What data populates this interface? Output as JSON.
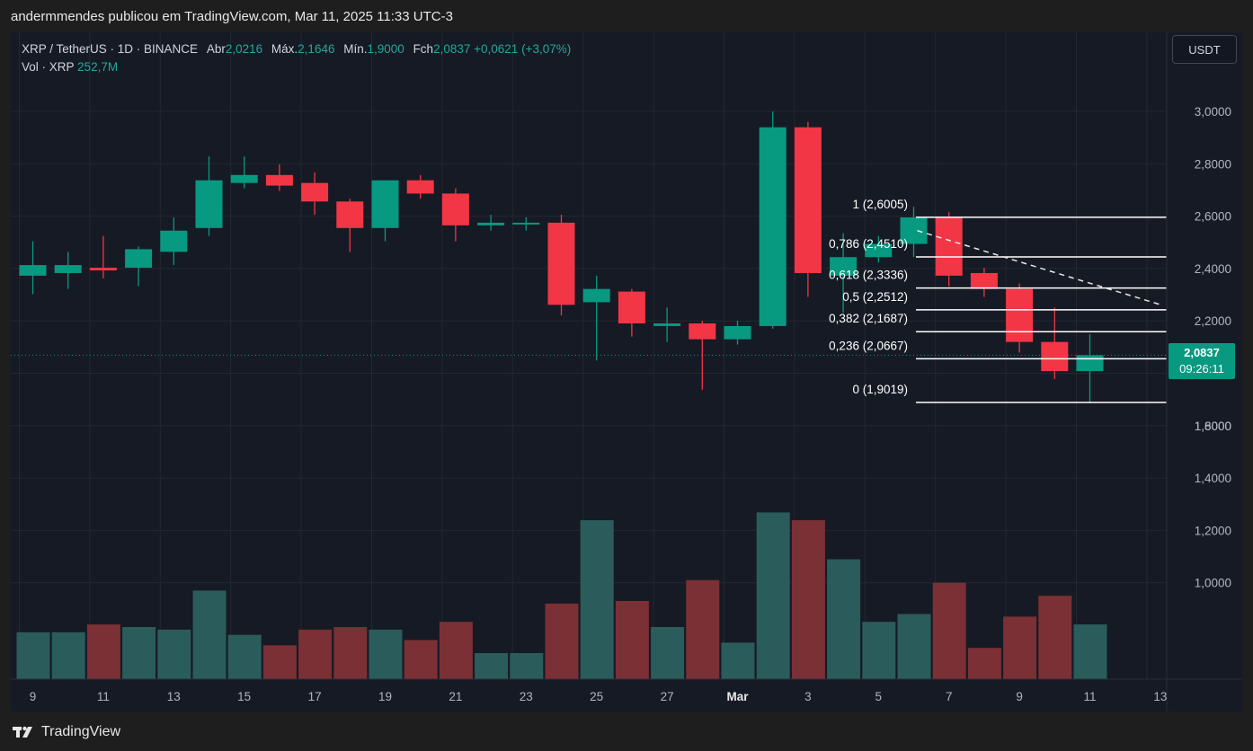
{
  "header": {
    "publisher": "andermmendes publicou em TradingView.com, Mar 11, 2025 11:33 UTC-3"
  },
  "legend": {
    "symbol": "XRP / TetherUS · 1D · BINANCE",
    "open_label": "Abr",
    "open": "2,0216",
    "high_label": "Máx.",
    "high": "2,1646",
    "low_label": "Mín.",
    "low": "1,9000",
    "close_label": "Fch",
    "close": "2,0837",
    "change": "+0,0621 (+3,07%)",
    "volume_label": "Vol · XRP",
    "volume": "252,7M"
  },
  "currency_button": "USDT",
  "last_price": {
    "price": "2,0837",
    "countdown": "09:26:11"
  },
  "footer": {
    "brand": "TradingView"
  },
  "colors": {
    "background": "#161a25",
    "up": "#089981",
    "down": "#f23645",
    "vol_up": "#2a5c5c",
    "vol_down": "#7a3034",
    "grid": "#23272f",
    "fib": "#ffffff",
    "axis_text": "#b2b5be"
  },
  "chart_data": {
    "type": "candlestick",
    "price_axis": {
      "ylim": [
        1.7,
        3.1
      ],
      "ticks": [
        "3,0000",
        "2,8000",
        "2,6000",
        "2,4000",
        "2,2000",
        "1,8000",
        "1,6000",
        "1,4000",
        "1,2000",
        "1,0000"
      ]
    },
    "x_axis": {
      "ticks": [
        "9",
        "11",
        "13",
        "15",
        "17",
        "19",
        "21",
        "23",
        "25",
        "27",
        "Mar",
        "3",
        "5",
        "7",
        "9",
        "11",
        "13"
      ]
    },
    "candles": [
      {
        "date": "Feb 08",
        "o": 2.38,
        "h": 2.51,
        "l": 2.31,
        "c": 2.42
      },
      {
        "date": "Feb 09",
        "o": 2.39,
        "h": 2.47,
        "l": 2.33,
        "c": 2.42
      },
      {
        "date": "Feb 10",
        "o": 2.41,
        "h": 2.53,
        "l": 2.37,
        "c": 2.4
      },
      {
        "date": "Feb 11",
        "o": 2.41,
        "h": 2.49,
        "l": 2.34,
        "c": 2.48
      },
      {
        "date": "Feb 12",
        "o": 2.47,
        "h": 2.6,
        "l": 2.42,
        "c": 2.55
      },
      {
        "date": "Feb 13",
        "o": 2.56,
        "h": 2.83,
        "l": 2.53,
        "c": 2.74
      },
      {
        "date": "Feb 14",
        "o": 2.73,
        "h": 2.83,
        "l": 2.71,
        "c": 2.76
      },
      {
        "date": "Feb 15",
        "o": 2.76,
        "h": 2.8,
        "l": 2.7,
        "c": 2.72
      },
      {
        "date": "Feb 16",
        "o": 2.73,
        "h": 2.77,
        "l": 2.61,
        "c": 2.66
      },
      {
        "date": "Feb 17",
        "o": 2.66,
        "h": 2.67,
        "l": 2.47,
        "c": 2.56
      },
      {
        "date": "Feb 18",
        "o": 2.56,
        "h": 2.74,
        "l": 2.51,
        "c": 2.74
      },
      {
        "date": "Feb 19",
        "o": 2.74,
        "h": 2.76,
        "l": 2.67,
        "c": 2.69
      },
      {
        "date": "Feb 20",
        "o": 2.69,
        "h": 2.71,
        "l": 2.51,
        "c": 2.57
      },
      {
        "date": "Feb 21",
        "o": 2.57,
        "h": 2.61,
        "l": 2.55,
        "c": 2.58
      },
      {
        "date": "Feb 22",
        "o": 2.58,
        "h": 2.6,
        "l": 2.55,
        "c": 2.58
      },
      {
        "date": "Feb 23",
        "o": 2.58,
        "h": 2.61,
        "l": 2.23,
        "c": 2.27
      },
      {
        "date": "Feb 24",
        "o": 2.28,
        "h": 2.38,
        "l": 2.06,
        "c": 2.33
      },
      {
        "date": "Feb 25",
        "o": 2.32,
        "h": 2.33,
        "l": 2.15,
        "c": 2.2
      },
      {
        "date": "Feb 26",
        "o": 2.19,
        "h": 2.26,
        "l": 2.13,
        "c": 2.2
      },
      {
        "date": "Feb 27",
        "o": 2.2,
        "h": 2.21,
        "l": 1.95,
        "c": 2.14
      },
      {
        "date": "Feb 28",
        "o": 2.14,
        "h": 2.21,
        "l": 2.12,
        "c": 2.19
      },
      {
        "date": "Mar 01",
        "o": 2.19,
        "h": 3.0,
        "l": 2.18,
        "c": 2.94
      },
      {
        "date": "Mar 02",
        "o": 2.94,
        "h": 2.96,
        "l": 2.3,
        "c": 2.39
      },
      {
        "date": "Mar 03",
        "o": 2.38,
        "h": 2.54,
        "l": 2.24,
        "c": 2.45
      },
      {
        "date": "Mar 04",
        "o": 2.45,
        "h": 2.53,
        "l": 2.43,
        "c": 2.5
      },
      {
        "date": "Mar 05",
        "o": 2.5,
        "h": 2.64,
        "l": 2.45,
        "c": 2.6
      },
      {
        "date": "Mar 06",
        "o": 2.6,
        "h": 2.62,
        "l": 2.34,
        "c": 2.38
      },
      {
        "date": "Mar 07",
        "o": 2.39,
        "h": 2.41,
        "l": 2.3,
        "c": 2.33
      },
      {
        "date": "Mar 08",
        "o": 2.33,
        "h": 2.35,
        "l": 2.09,
        "c": 2.13
      },
      {
        "date": "Mar 09",
        "o": 2.13,
        "h": 2.26,
        "l": 1.99,
        "c": 2.02
      },
      {
        "date": "Mar 10",
        "o": 2.02,
        "h": 2.16,
        "l": 1.9,
        "c": 2.08
      }
    ],
    "volume": {
      "axis_labels": [
        "1,4000",
        "1,2000",
        "1,0000"
      ],
      "series": [
        0.99,
        0.99,
        1.02,
        1.01,
        1.0,
        1.15,
        0.98,
        0.94,
        1.0,
        1.01,
        1.0,
        0.96,
        1.03,
        0.91,
        0.91,
        1.1,
        1.42,
        1.11,
        1.01,
        1.19,
        0.95,
        1.45,
        1.42,
        1.27,
        1.03,
        1.06,
        1.18,
        0.93,
        1.05,
        1.13,
        1.02
      ]
    },
    "fibonacci": [
      {
        "label": "1 (2,6005)",
        "value": 2.6005
      },
      {
        "label": "0,786 (2,4510)",
        "value": 2.451
      },
      {
        "label": "0,618 (2,3336)",
        "value": 2.3336
      },
      {
        "label": "0,5 (2,2512)",
        "value": 2.2512
      },
      {
        "label": "0,382 (2,1687)",
        "value": 2.1687
      },
      {
        "label": "0,236 (2,0667)",
        "value": 2.0667
      },
      {
        "label": "0 (1,9019)",
        "value": 1.9019
      }
    ],
    "trendline": [
      {
        "date": "Mar 06",
        "value": 2.55
      },
      {
        "date": "Mar 12",
        "value": 2.27
      }
    ]
  }
}
